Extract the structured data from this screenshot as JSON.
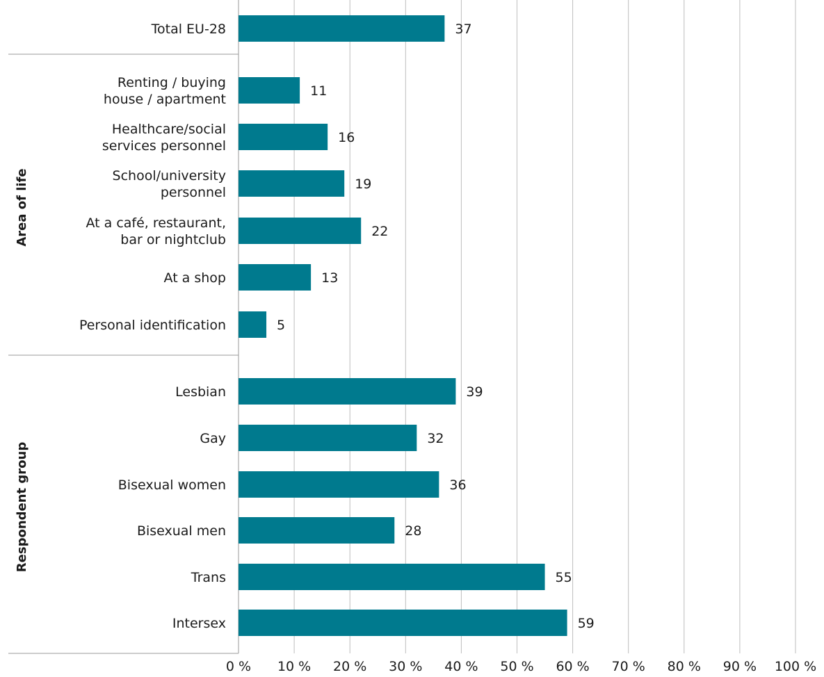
{
  "chart_data": {
    "type": "bar",
    "orientation": "horizontal",
    "bar_color": "#007A8E",
    "grid": true,
    "xlim": [
      0,
      100
    ],
    "x_ticks": [
      "0 %",
      "10 %",
      "20 %",
      "30 %",
      "40 %",
      "50 %",
      "60 %",
      "70 %",
      "80 %",
      "90 %",
      "100 %"
    ],
    "groups": [
      {
        "label": "",
        "rows": [
          {
            "lines": [
              "Total EU-28"
            ],
            "value": 37,
            "value_label": "37"
          }
        ]
      },
      {
        "label": "Area of life",
        "rows": [
          {
            "lines": [
              "Renting / buying",
              "house / apartment"
            ],
            "value": 11,
            "value_label": "11"
          },
          {
            "lines": [
              "Healthcare/social",
              "services personnel"
            ],
            "value": 16,
            "value_label": "16"
          },
          {
            "lines": [
              "School/university",
              "personnel"
            ],
            "value": 19,
            "value_label": "19"
          },
          {
            "lines": [
              "At a café, restaurant,",
              "bar or nightclub"
            ],
            "value": 22,
            "value_label": "22"
          },
          {
            "lines": [
              "At a shop"
            ],
            "value": 13,
            "value_label": "13"
          },
          {
            "lines": [
              "Personal identification"
            ],
            "value": 5,
            "value_label": "5"
          }
        ]
      },
      {
        "label": "Respondent group",
        "rows": [
          {
            "lines": [
              "Lesbian"
            ],
            "value": 39,
            "value_label": "39"
          },
          {
            "lines": [
              "Gay"
            ],
            "value": 32,
            "value_label": "32"
          },
          {
            "lines": [
              "Bisexual women"
            ],
            "value": 36,
            "value_label": "36"
          },
          {
            "lines": [
              "Bisexual men"
            ],
            "value": 28,
            "value_label": "28"
          },
          {
            "lines": [
              "Trans"
            ],
            "value": 55,
            "value_label": "55"
          },
          {
            "lines": [
              "Intersex"
            ],
            "value": 59,
            "value_label": "59"
          }
        ]
      }
    ]
  }
}
